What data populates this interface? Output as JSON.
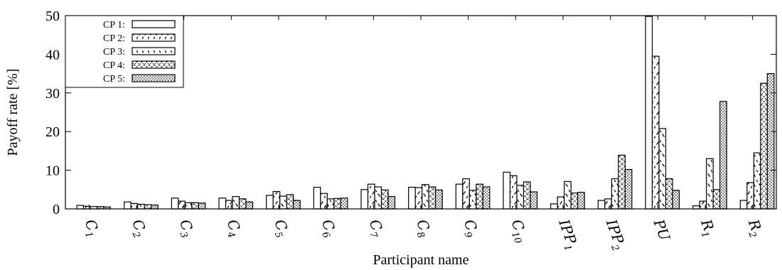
{
  "chart_data": {
    "type": "bar",
    "xlabel": "Participant name",
    "ylabel": "Payoff rate [%]",
    "ylim": [
      0,
      50
    ],
    "yticks": [
      0,
      10,
      20,
      30,
      40,
      50
    ],
    "grid": false,
    "legend_position": "top-left",
    "categories": [
      {
        "base": "C",
        "sub": "1"
      },
      {
        "base": "C",
        "sub": "2"
      },
      {
        "base": "C",
        "sub": "3"
      },
      {
        "base": "C",
        "sub": "4"
      },
      {
        "base": "C",
        "sub": "5"
      },
      {
        "base": "C",
        "sub": "6"
      },
      {
        "base": "C",
        "sub": "7"
      },
      {
        "base": "C",
        "sub": "8"
      },
      {
        "base": "C",
        "sub": "9"
      },
      {
        "base": "C",
        "sub": "10"
      },
      {
        "base": "IPP",
        "sub": "1"
      },
      {
        "base": "IPP",
        "sub": "2"
      },
      {
        "base": "PU",
        "sub": ""
      },
      {
        "base": "R",
        "sub": "1"
      },
      {
        "base": "R",
        "sub": "2"
      }
    ],
    "series": [
      {
        "name": "CP 1:",
        "pattern": "solid",
        "values": [
          0.9,
          1.8,
          2.8,
          2.8,
          3.5,
          5.6,
          5.0,
          5.6,
          6.4,
          9.5,
          1.3,
          2.2,
          49.8,
          0.8,
          2.2
        ]
      },
      {
        "name": "CP 2:",
        "pattern": "slash",
        "values": [
          0.7,
          1.4,
          2.0,
          2.2,
          4.5,
          4.0,
          6.4,
          5.5,
          7.8,
          8.6,
          3.1,
          2.6,
          39.5,
          2.0,
          6.8
        ]
      },
      {
        "name": "CP 3:",
        "pattern": "backslash",
        "values": [
          0.6,
          1.2,
          1.6,
          3.2,
          3.3,
          2.6,
          5.7,
          6.3,
          4.8,
          6.1,
          7.1,
          7.8,
          20.8,
          13.0,
          14.5
        ]
      },
      {
        "name": "CP 4:",
        "pattern": "cross",
        "values": [
          0.6,
          1.1,
          1.6,
          2.6,
          3.7,
          2.7,
          4.9,
          5.7,
          6.4,
          7.0,
          4.1,
          13.9,
          7.8,
          5.0,
          32.5
        ]
      },
      {
        "name": "CP 5:",
        "pattern": "dots",
        "values": [
          0.5,
          1.0,
          1.5,
          1.8,
          2.2,
          2.8,
          3.2,
          4.9,
          5.7,
          4.4,
          4.3,
          10.2,
          4.8,
          27.8,
          35.0
        ]
      }
    ]
  }
}
